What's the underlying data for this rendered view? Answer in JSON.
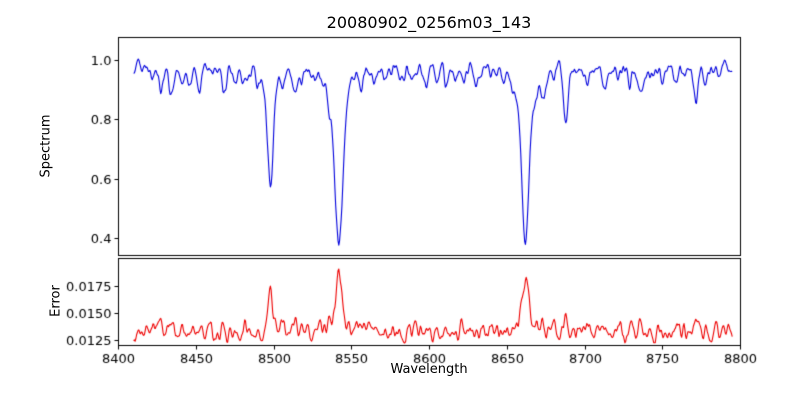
{
  "chart_data": {
    "type": "line",
    "title": "20080902_0256m03_143",
    "xlabel": "Wavelength",
    "xlim": [
      8400,
      8800
    ],
    "x_ticks": [
      8400,
      8450,
      8500,
      8550,
      8600,
      8650,
      8700,
      8750,
      8800
    ],
    "x_tick_labels": [
      "8400",
      "8450",
      "8500",
      "8550",
      "8600",
      "8650",
      "8700",
      "8750",
      "8800"
    ],
    "x_data_range": [
      8410,
      8795
    ],
    "sample_step": 0.5,
    "noise_seed": 20080902,
    "background": "#ffffff",
    "line_format": [
      "center",
      "depth",
      "sigma"
    ],
    "panels": [
      {
        "name": "spectrum",
        "ylabel": "Spectrum",
        "color": "#0000dd",
        "ylim": [
          0.343,
          1.078
        ],
        "y_ticks": [
          0.4,
          0.6,
          0.8,
          1.0
        ],
        "y_tick_labels": [
          "0.4",
          "0.6",
          "0.8",
          "1.0"
        ],
        "continuum": 0.97,
        "noise_amp": 0.09,
        "clamp_max": 1.032,
        "absorption_lines": [
          [
            8422,
            0.045,
            1.2
          ],
          [
            8428,
            0.06,
            1.3
          ],
          [
            8434,
            0.1,
            1.5
          ],
          [
            8441,
            0.05,
            1.2
          ],
          [
            8446,
            0.05,
            1.2
          ],
          [
            8452,
            0.065,
            1.3
          ],
          [
            8460,
            0.03,
            1.0
          ],
          [
            8468,
            0.09,
            1.5
          ],
          [
            8475,
            0.045,
            1.2
          ],
          [
            8481,
            0.05,
            1.2
          ],
          [
            8490,
            0.035,
            1.0
          ],
          [
            8498,
            0.33,
            1.9
          ],
          [
            8498,
            0.055,
            5.0
          ],
          [
            8506,
            0.07,
            1.1
          ],
          [
            8514,
            0.085,
            1.4
          ],
          [
            8518,
            0.05,
            1.1
          ],
          [
            8527,
            0.035,
            1.0
          ],
          [
            8536,
            0.05,
            1.1
          ],
          [
            8542,
            0.5,
            2.5
          ],
          [
            8542,
            0.1,
            7.0
          ],
          [
            8556,
            0.045,
            1.2
          ],
          [
            8564,
            0.035,
            1.0
          ],
          [
            8572,
            0.04,
            1.1
          ],
          [
            8582,
            0.05,
            1.2
          ],
          [
            8590,
            0.035,
            1.0
          ],
          [
            8598,
            0.055,
            1.3
          ],
          [
            8605,
            0.035,
            1.0
          ],
          [
            8611,
            0.05,
            1.2
          ],
          [
            8617,
            0.035,
            1.0
          ],
          [
            8622,
            0.07,
            1.4
          ],
          [
            8630,
            0.04,
            1.1
          ],
          [
            8640,
            0.035,
            1.0
          ],
          [
            8648,
            0.05,
            1.2
          ],
          [
            8654,
            0.04,
            1.0
          ],
          [
            8662,
            0.5,
            2.3
          ],
          [
            8662,
            0.095,
            6.5
          ],
          [
            8669,
            0.05,
            1.1
          ],
          [
            8674,
            0.09,
            1.4
          ],
          [
            8680,
            0.045,
            1.1
          ],
          [
            8688,
            0.2,
            1.3
          ],
          [
            8696,
            0.035,
            1.0
          ],
          [
            8702,
            0.05,
            1.2
          ],
          [
            8713,
            0.065,
            1.3
          ],
          [
            8722,
            0.04,
            1.0
          ],
          [
            8729,
            0.045,
            1.1
          ],
          [
            8736,
            0.075,
            1.3
          ],
          [
            8742,
            0.035,
            1.0
          ],
          [
            8750,
            0.05,
            1.2
          ],
          [
            8758,
            0.065,
            1.3
          ],
          [
            8764,
            0.035,
            1.0
          ],
          [
            8772,
            0.09,
            1.4
          ],
          [
            8778,
            0.045,
            1.1
          ]
        ]
      },
      {
        "name": "error",
        "ylabel": "Error",
        "color": "#ee0000",
        "ylim": [
          0.01205,
          0.02005
        ],
        "y_ticks": [
          0.0125,
          0.015,
          0.0175
        ],
        "y_tick_labels": [
          "0.0125",
          "0.0150",
          "0.0175"
        ],
        "baseline": 0.01315,
        "noise_amp": 0.003,
        "peak_scale": 0.0087,
        "clamp_min": 0.01225,
        "main_peaks_note": [
          {
            "center": 8498,
            "peak_value": 0.0165
          },
          {
            "center": 8542,
            "peak_value": 0.0183
          },
          {
            "center": 8662,
            "peak_value": 0.0185
          },
          {
            "center": 8688,
            "peak_value": 0.0148
          }
        ]
      }
    ]
  }
}
